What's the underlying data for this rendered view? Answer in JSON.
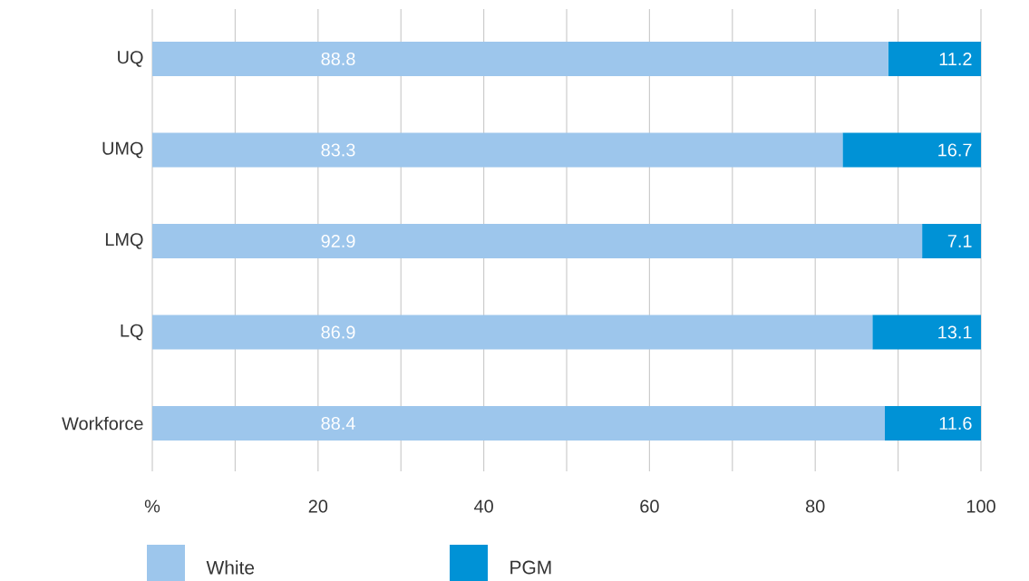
{
  "chart_data": {
    "type": "bar",
    "orientation": "horizontal",
    "stacked": true,
    "categories": [
      "UQ",
      "UMQ",
      "LMQ",
      "LQ",
      "Workforce"
    ],
    "series": [
      {
        "name": "White",
        "color": "#9dc6ec",
        "values": [
          88.8,
          83.3,
          92.9,
          86.9,
          88.4
        ]
      },
      {
        "name": "PGM",
        "color": "#0092d6",
        "values": [
          11.2,
          16.7,
          7.1,
          13.1,
          11.6
        ]
      }
    ],
    "xlim": [
      0,
      100
    ],
    "xticks": [
      {
        "value": 0,
        "label": "%"
      },
      {
        "value": 10,
        "label": null
      },
      20,
      {
        "value": 30,
        "label": null
      },
      40,
      {
        "value": 50,
        "label": null
      },
      60,
      {
        "value": 70,
        "label": null
      },
      80,
      {
        "value": 90,
        "label": null
      },
      100
    ],
    "grid": "x",
    "legend": "bottom",
    "data_labels": true
  }
}
